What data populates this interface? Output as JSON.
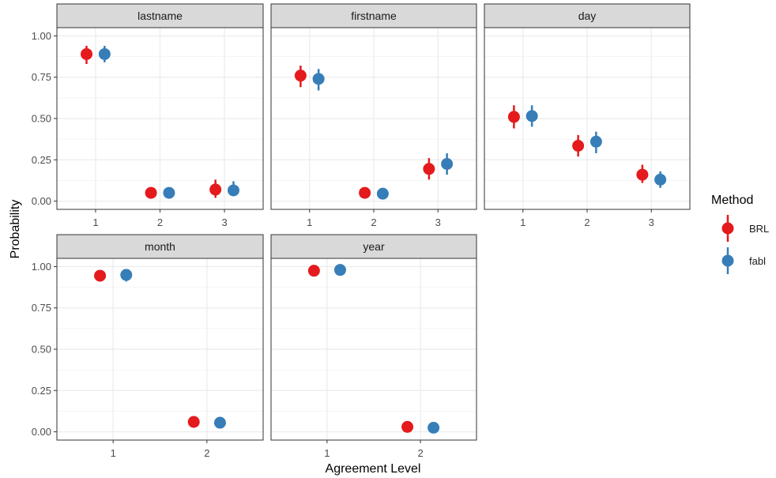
{
  "chart_data": {
    "type": "scatter",
    "xlabel": "Agreement Level",
    "ylabel": "Probability",
    "ylim": [
      -0.05,
      1.05
    ],
    "y_ticks": [
      "0.00",
      "0.25",
      "0.50",
      "0.75",
      "1.00"
    ],
    "grid": true,
    "legend": {
      "title": "Method",
      "placement": "right",
      "entries": [
        {
          "name": "BRL",
          "color": "#E41A1C"
        },
        {
          "name": "fabl",
          "color": "#377EB8"
        }
      ]
    },
    "panels": [
      {
        "strip": "lastname",
        "x_ticks": [
          "1",
          "2",
          "3"
        ],
        "series": [
          {
            "name": "BRL",
            "color": "#E41A1C",
            "points": [
              {
                "x": 1,
                "y": 0.89,
                "lo": 0.83,
                "hi": 0.94
              },
              {
                "x": 2,
                "y": 0.05,
                "lo": 0.03,
                "hi": 0.07
              },
              {
                "x": 3,
                "y": 0.07,
                "lo": 0.02,
                "hi": 0.13
              }
            ]
          },
          {
            "name": "fabl",
            "color": "#377EB8",
            "points": [
              {
                "x": 1,
                "y": 0.89,
                "lo": 0.84,
                "hi": 0.94
              },
              {
                "x": 2,
                "y": 0.05,
                "lo": 0.03,
                "hi": 0.07
              },
              {
                "x": 3,
                "y": 0.065,
                "lo": 0.03,
                "hi": 0.12
              }
            ]
          }
        ]
      },
      {
        "strip": "firstname",
        "x_ticks": [
          "1",
          "2",
          "3"
        ],
        "series": [
          {
            "name": "BRL",
            "color": "#E41A1C",
            "points": [
              {
                "x": 1,
                "y": 0.76,
                "lo": 0.69,
                "hi": 0.82
              },
              {
                "x": 2,
                "y": 0.05,
                "lo": 0.03,
                "hi": 0.07
              },
              {
                "x": 3,
                "y": 0.195,
                "lo": 0.13,
                "hi": 0.26
              }
            ]
          },
          {
            "name": "fabl",
            "color": "#377EB8",
            "points": [
              {
                "x": 1,
                "y": 0.74,
                "lo": 0.67,
                "hi": 0.8
              },
              {
                "x": 2,
                "y": 0.045,
                "lo": 0.03,
                "hi": 0.06
              },
              {
                "x": 3,
                "y": 0.225,
                "lo": 0.16,
                "hi": 0.29
              }
            ]
          }
        ]
      },
      {
        "strip": "day",
        "x_ticks": [
          "1",
          "2",
          "3"
        ],
        "series": [
          {
            "name": "BRL",
            "color": "#E41A1C",
            "points": [
              {
                "x": 1,
                "y": 0.51,
                "lo": 0.44,
                "hi": 0.58
              },
              {
                "x": 2,
                "y": 0.335,
                "lo": 0.27,
                "hi": 0.4
              },
              {
                "x": 3,
                "y": 0.16,
                "lo": 0.11,
                "hi": 0.22
              }
            ]
          },
          {
            "name": "fabl",
            "color": "#377EB8",
            "points": [
              {
                "x": 1,
                "y": 0.515,
                "lo": 0.45,
                "hi": 0.58
              },
              {
                "x": 2,
                "y": 0.36,
                "lo": 0.29,
                "hi": 0.42
              },
              {
                "x": 3,
                "y": 0.13,
                "lo": 0.08,
                "hi": 0.18
              }
            ]
          }
        ]
      },
      {
        "strip": "month",
        "x_ticks": [
          "1",
          "2"
        ],
        "series": [
          {
            "name": "BRL",
            "color": "#E41A1C",
            "points": [
              {
                "x": 1,
                "y": 0.945,
                "lo": 0.91,
                "hi": 0.97
              },
              {
                "x": 2,
                "y": 0.06,
                "lo": 0.03,
                "hi": 0.09
              }
            ]
          },
          {
            "name": "fabl",
            "color": "#377EB8",
            "points": [
              {
                "x": 1,
                "y": 0.95,
                "lo": 0.91,
                "hi": 0.97
              },
              {
                "x": 2,
                "y": 0.055,
                "lo": 0.03,
                "hi": 0.085
              }
            ]
          }
        ]
      },
      {
        "strip": "year",
        "x_ticks": [
          "1",
          "2"
        ],
        "series": [
          {
            "name": "BRL",
            "color": "#E41A1C",
            "points": [
              {
                "x": 1,
                "y": 0.975,
                "lo": 0.96,
                "hi": 0.99
              },
              {
                "x": 2,
                "y": 0.03,
                "lo": 0.015,
                "hi": 0.045
              }
            ]
          },
          {
            "name": "fabl",
            "color": "#377EB8",
            "points": [
              {
                "x": 1,
                "y": 0.98,
                "lo": 0.965,
                "hi": 0.99
              },
              {
                "x": 2,
                "y": 0.025,
                "lo": 0.01,
                "hi": 0.04
              }
            ]
          }
        ]
      }
    ]
  }
}
